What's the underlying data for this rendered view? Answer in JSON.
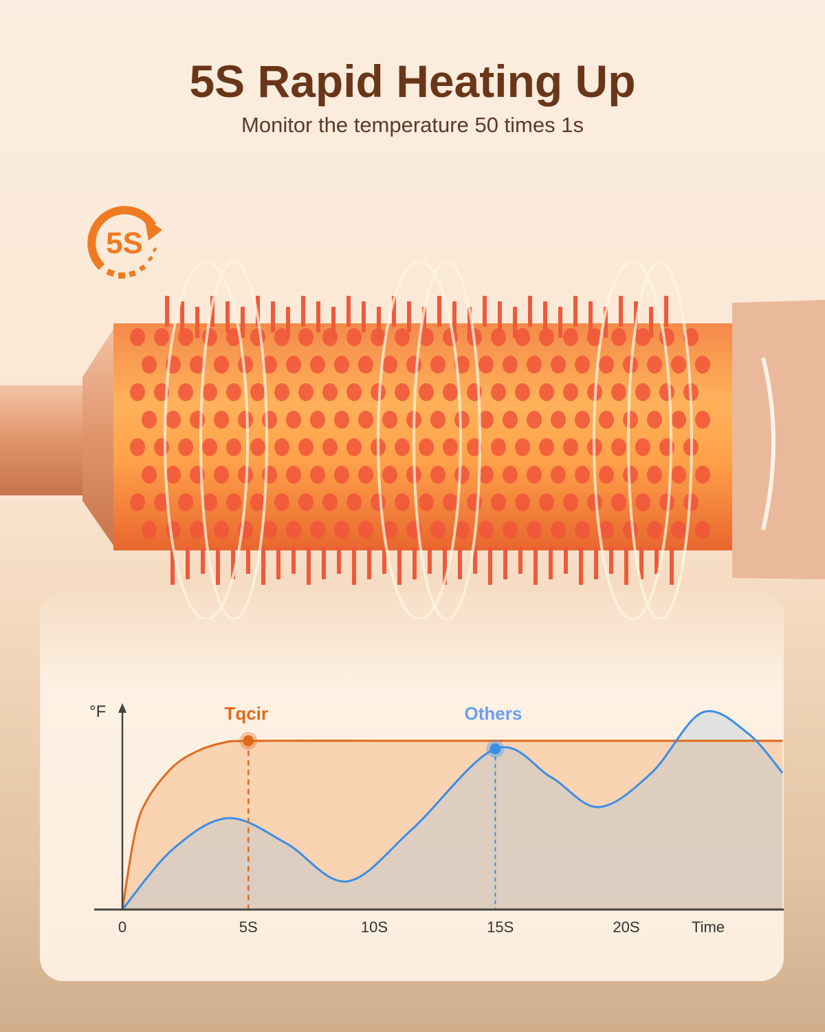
{
  "header": {
    "title": "5S Rapid Heating Up",
    "subtitle": "Monitor the temperature 50 times 1s"
  },
  "badge": {
    "text": "5S",
    "icon": "clock-arrow-icon",
    "color": "#f07a22"
  },
  "colors": {
    "title": "#6a3619",
    "tqcir": "#e06a1c",
    "others": "#3a8ee6",
    "others_label": "#6a9ff0"
  },
  "chart_data": {
    "type": "line",
    "ylabel": "°F",
    "xlabel": "Time",
    "x_ticks": [
      "0",
      "5S",
      "10S",
      "15S",
      "20S"
    ],
    "x_tick_values": [
      0,
      5,
      10,
      15,
      20
    ],
    "xlim": [
      0,
      26.2
    ],
    "ylim": [
      0,
      100
    ],
    "grid": false,
    "y_tick_labels": false,
    "series": [
      {
        "name": "Tqcir",
        "x": [
          0,
          0.5,
          1,
          2,
          3,
          4,
          5,
          10,
          15,
          20,
          26.2
        ],
        "y": [
          0,
          38,
          55,
          71,
          79,
          83,
          84,
          84,
          84,
          84,
          84
        ],
        "marker_x": 5
      },
      {
        "name": "Others",
        "x": [
          0,
          2,
          4.2,
          6.5,
          8.9,
          11.5,
          14.8,
          17,
          18.9,
          21,
          23,
          24.8,
          26.2
        ],
        "y": [
          0,
          30,
          45.5,
          33,
          14,
          40,
          80,
          66,
          51,
          68,
          98,
          88,
          68
        ],
        "marker_x": 14.8
      }
    ]
  }
}
